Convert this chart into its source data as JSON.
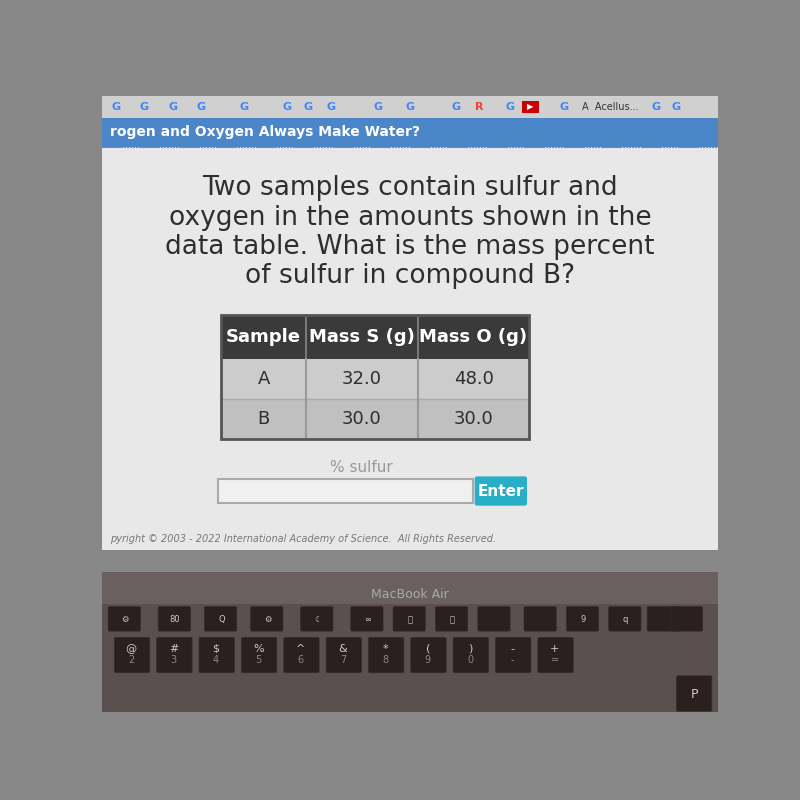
{
  "title_line1": "Two samples contain sulfur and",
  "title_line2": "oxygen in the amounts shown in the",
  "title_line3": "data table. What is the mass percent",
  "title_line4": "of sulfur in compound B?",
  "title_fontsize": 19,
  "title_color": "#2e2e2e",
  "content_bg": "#e8e8e8",
  "browser_tab_bg": "#5b9bd5",
  "browser_tab_text": "rogen and Oxygen Always Make Water?",
  "browser_toolbar_bg": "#c8c8c8",
  "browser_bookmarks_bg": "#e0e0e0",
  "table_header_bg": "#3a3a3a",
  "table_header_text_color": "#ffffff",
  "table_row_a_bg": "#cccccc",
  "table_row_b_bg": "#c0c0c0",
  "table_divider_color": "#999999",
  "table_text_color": "#2e2e2e",
  "col_headers": [
    "Sample",
    "Mass S (g)",
    "Mass O (g)"
  ],
  "rows": [
    [
      "A",
      "32.0",
      "48.0"
    ],
    [
      "B",
      "30.0",
      "30.0"
    ]
  ],
  "input_label": "% sulfur",
  "input_label_color": "#999999",
  "input_box_border": "#aaaaaa",
  "input_box_bg": "#f0f0f0",
  "enter_button_bg": "#29aec7",
  "enter_button_text": "Enter",
  "enter_button_text_color": "#ffffff",
  "copyright_text": "pyright © 2003 - 2022 International Academy of Science.  All Rights Reserved.",
  "copyright_color": "#777777",
  "copyright_fontsize": 7,
  "macbook_text": "MacBook Air",
  "macbook_color": "#aaaaaa",
  "laptop_body_color": "#7a7a7a",
  "keyboard_bg": "#5a5050",
  "key_color": "#2a2020",
  "key_text_color": "#cccccc"
}
